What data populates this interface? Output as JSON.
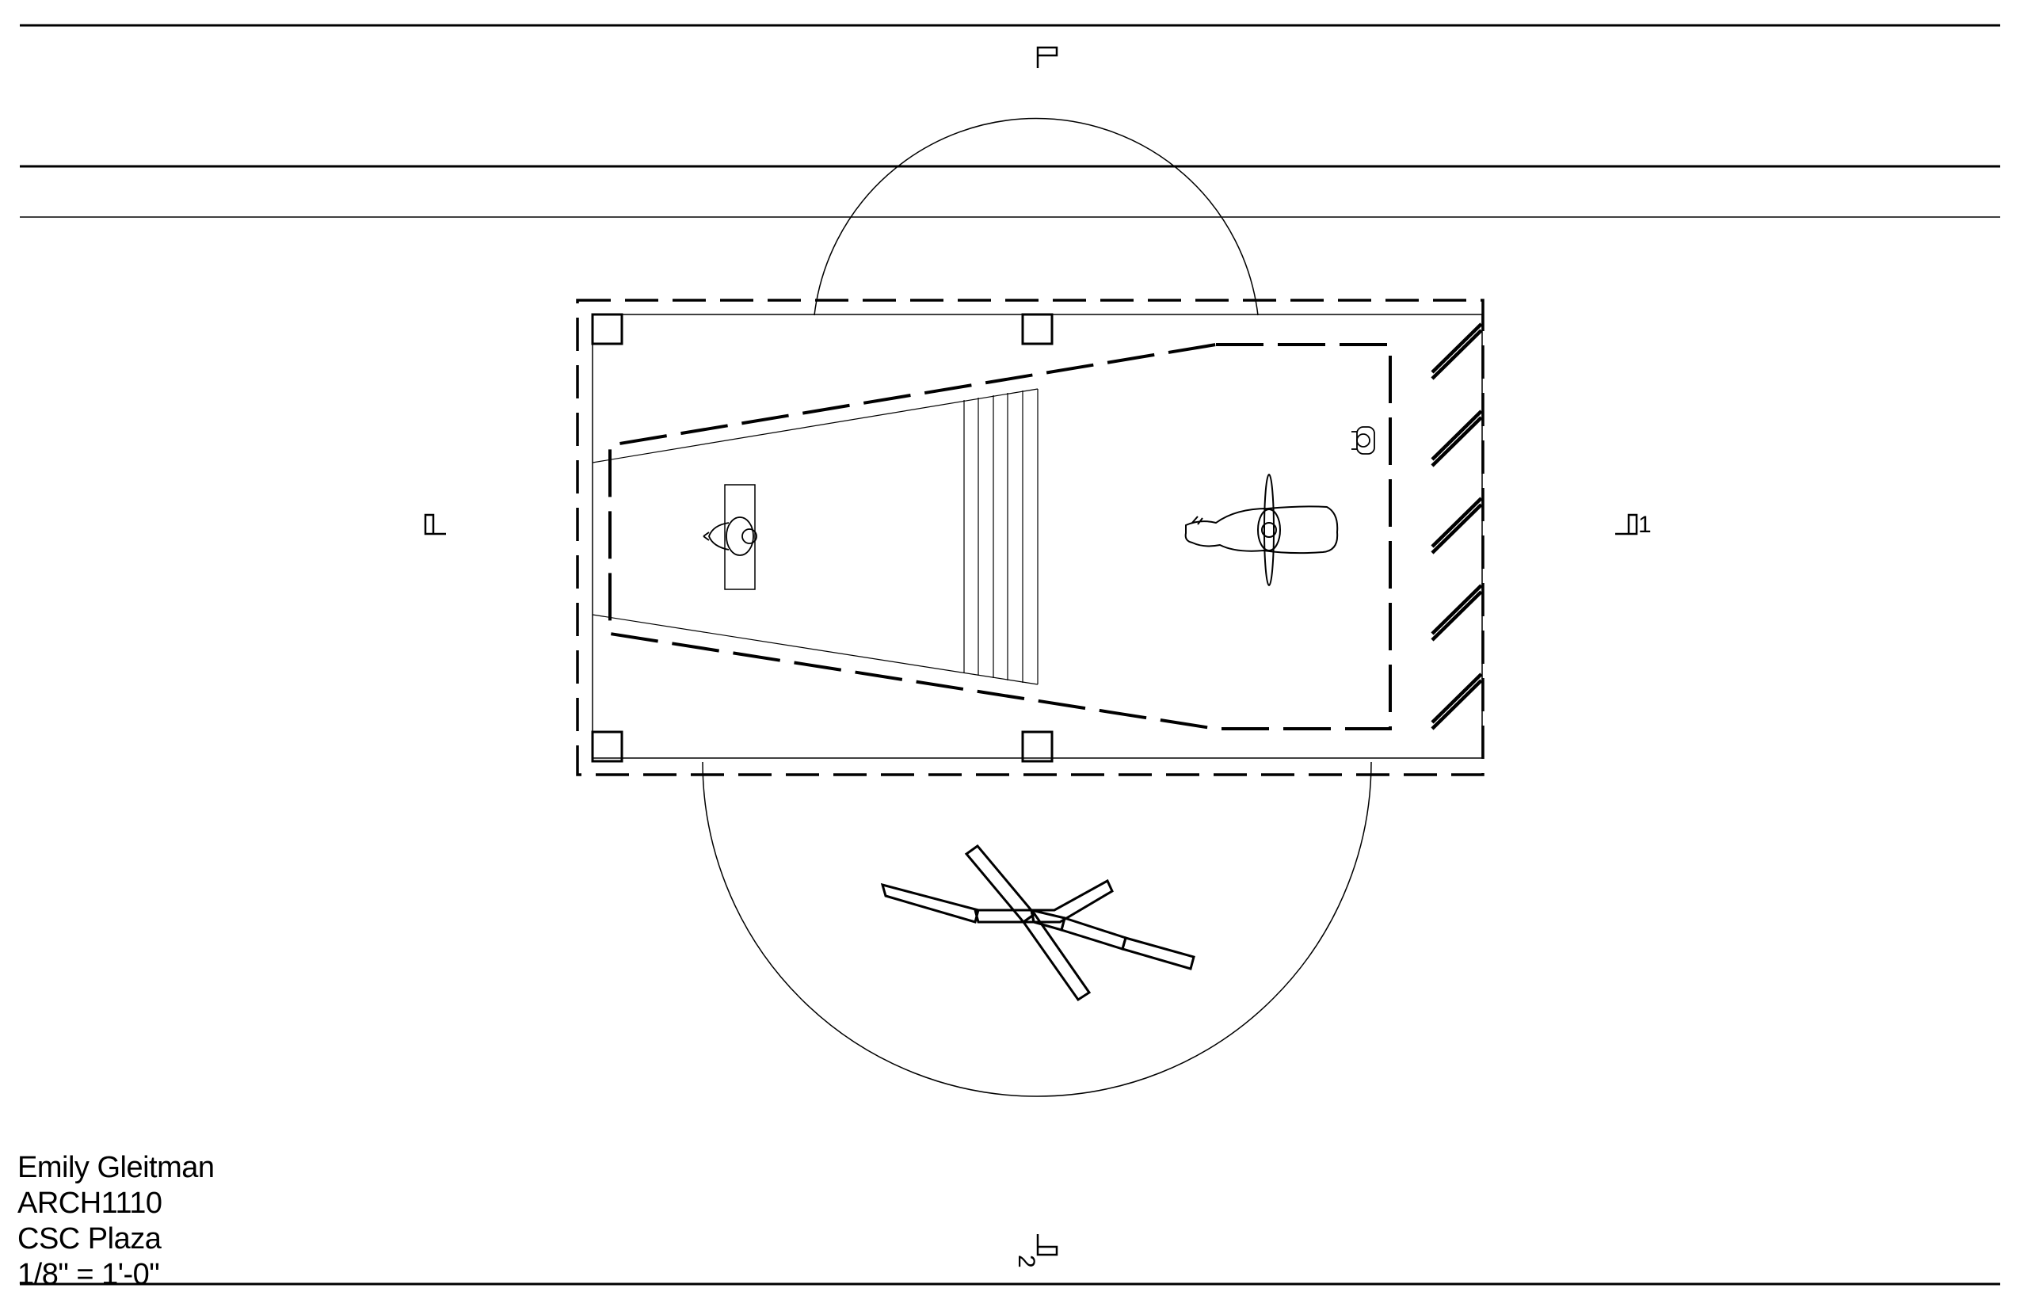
{
  "drawing": {
    "author": "Emily Gleitman",
    "course": "ARCH1110",
    "project": "CSC Plaza",
    "scale": "1/8\" = 1'-0\""
  },
  "section_markers": {
    "one": "1",
    "two": "2"
  },
  "colors": {
    "line": "#000000",
    "background": "#ffffff"
  }
}
